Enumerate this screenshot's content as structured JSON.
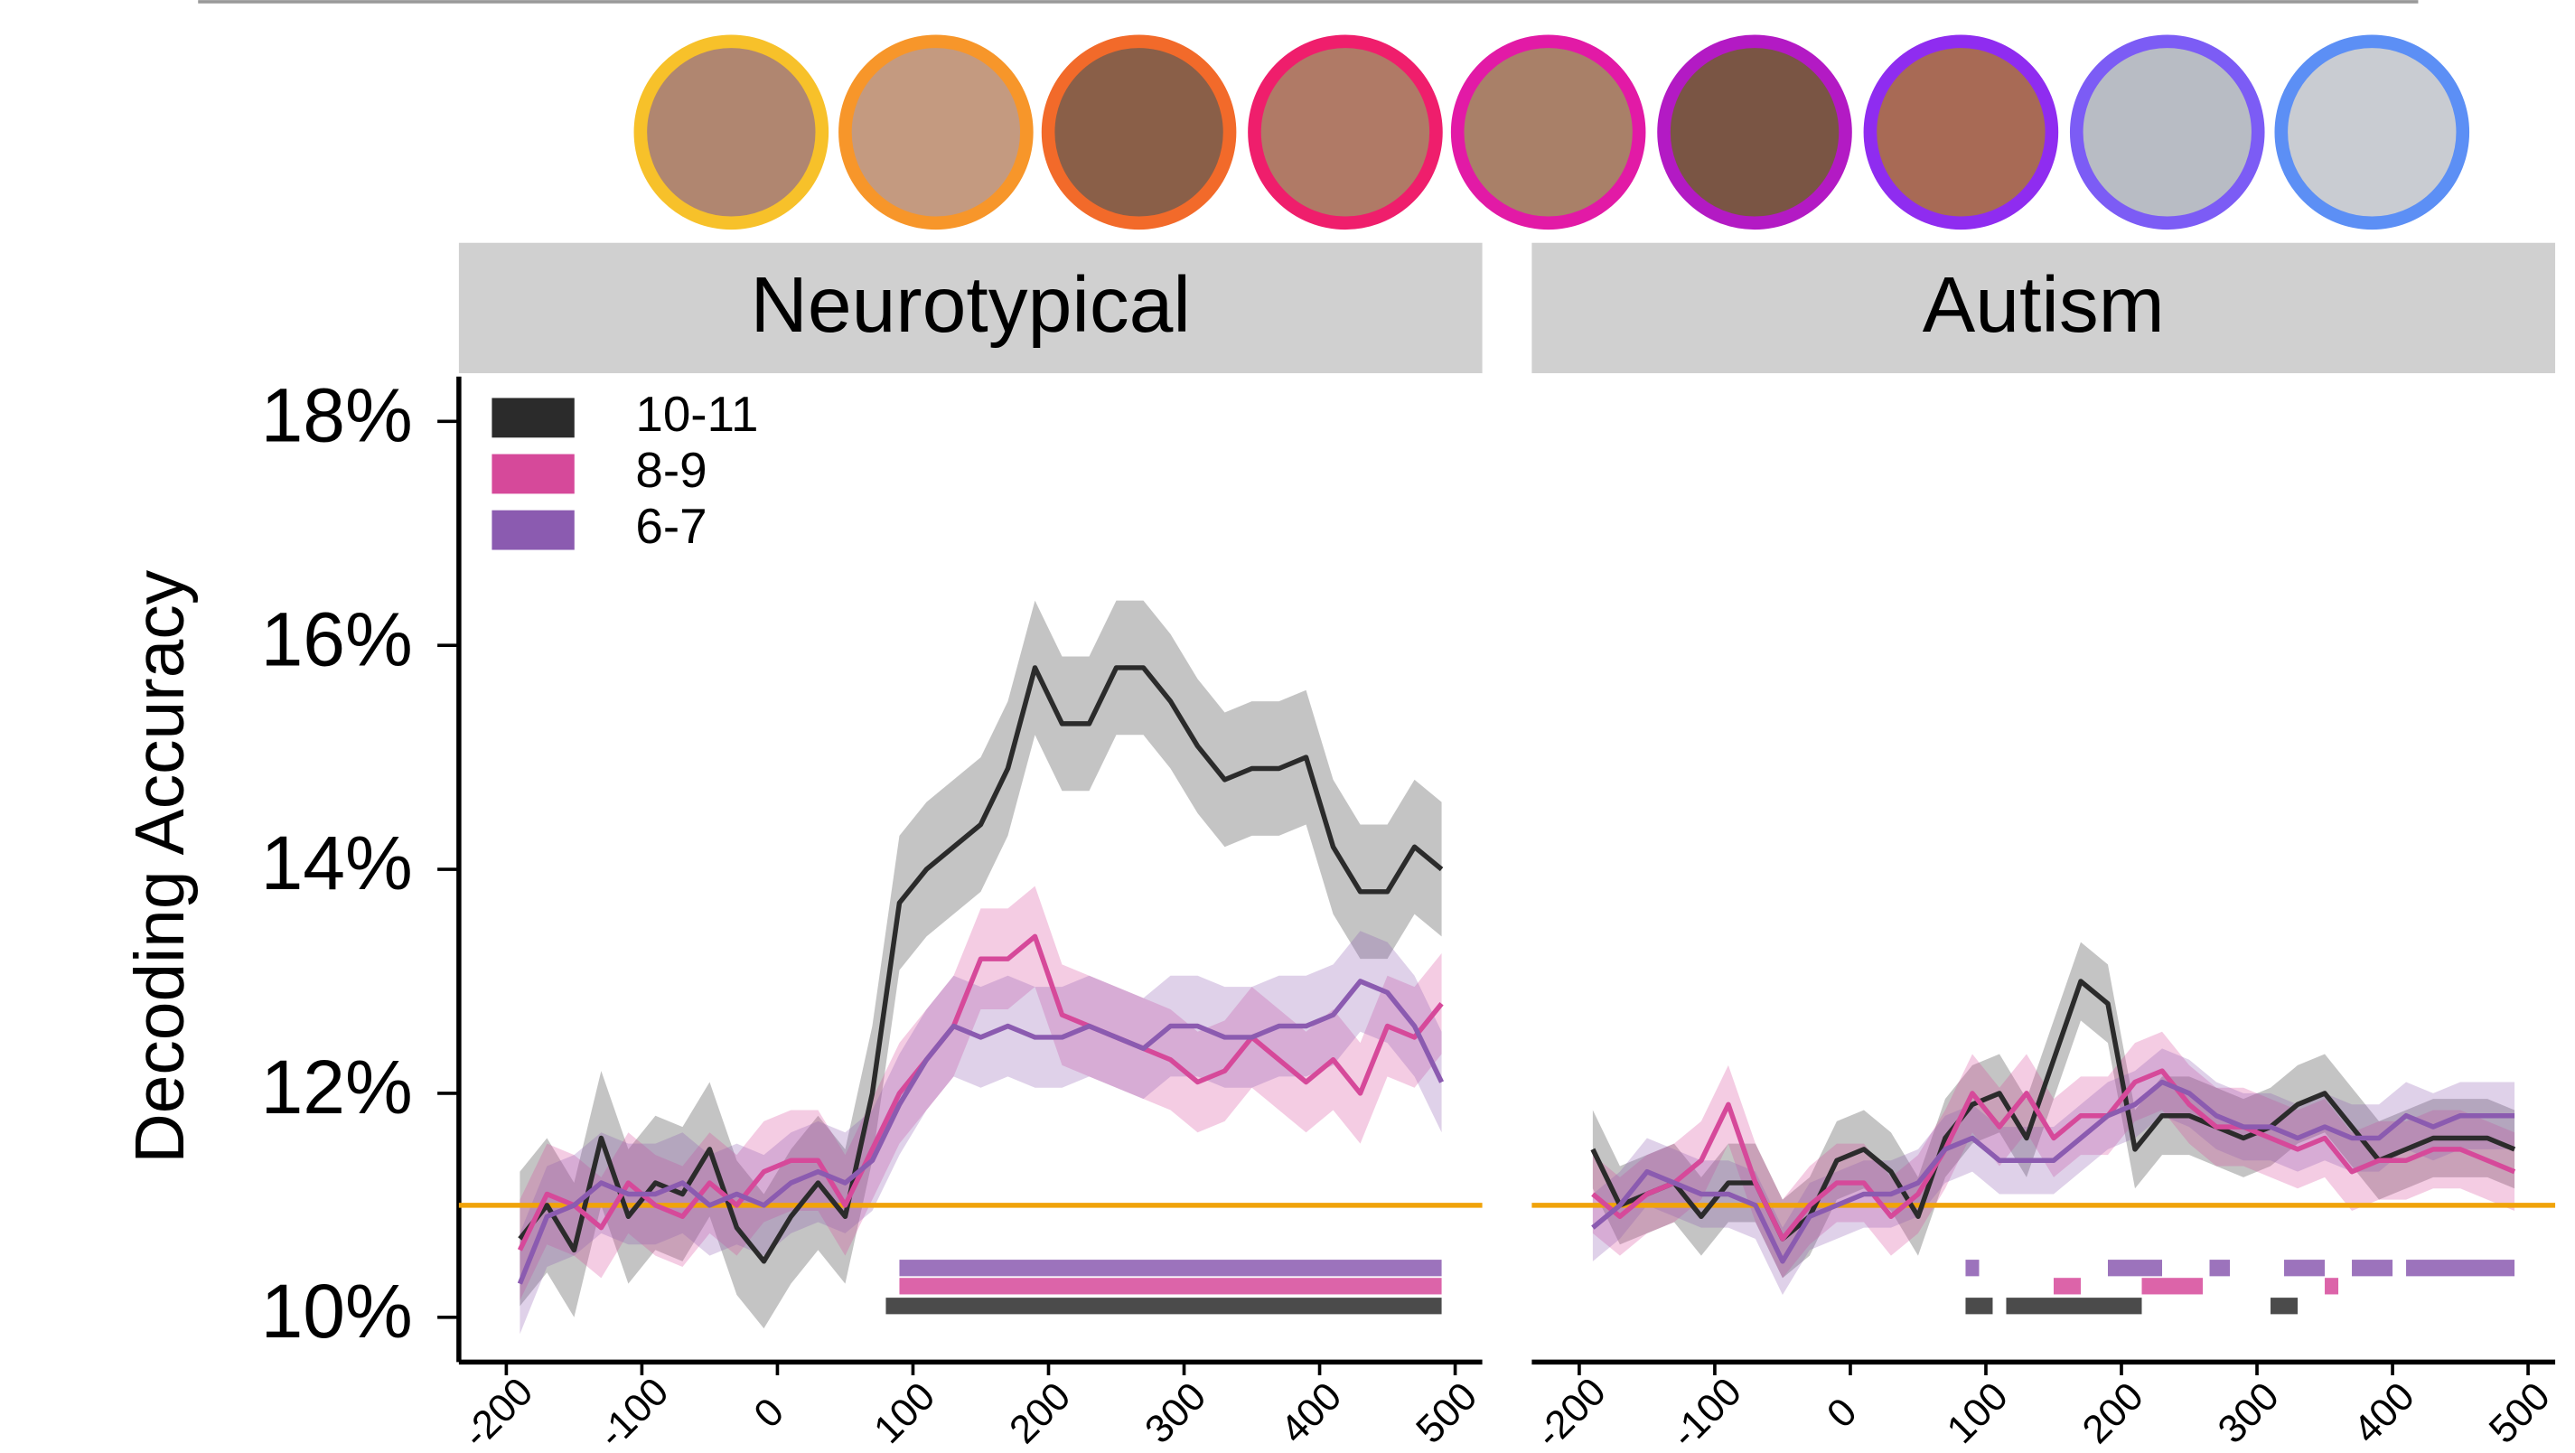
{
  "chart_data": [
    {
      "type": "line",
      "title": "Neurotypical",
      "ylabel": "Decoding Accuracy",
      "legend": "top-left",
      "xlim": [
        -235,
        520
      ],
      "xticks": [
        -200,
        -100,
        0,
        100,
        200,
        300,
        400,
        500
      ],
      "ylim": [
        9.6,
        18.4
      ],
      "yticks": [
        {
          "value": 10,
          "label": "10%"
        },
        {
          "value": 12,
          "label": "12%"
        },
        {
          "value": 14,
          "label": "14%"
        },
        {
          "value": 16,
          "label": "16%"
        },
        {
          "value": 18,
          "label": "18%"
        }
      ],
      "hline": 11,
      "hline_color": "#f0a30a",
      "x": [
        -190,
        -170,
        -150,
        -130,
        -110,
        -90,
        -70,
        -50,
        -30,
        -10,
        10,
        30,
        50,
        70,
        90,
        110,
        130,
        150,
        170,
        190,
        210,
        230,
        250,
        270,
        290,
        310,
        330,
        350,
        370,
        390,
        410,
        430,
        450,
        470,
        490
      ],
      "series": [
        {
          "name": "10-11",
          "color": "#2b2b2b",
          "error": 0.6,
          "significant": [
            [
              80,
              490
            ]
          ],
          "values": [
            10.7,
            11.0,
            10.6,
            11.6,
            10.9,
            11.2,
            11.1,
            11.5,
            10.8,
            10.5,
            10.9,
            11.2,
            10.9,
            12.0,
            13.7,
            14.0,
            14.2,
            14.4,
            14.9,
            15.8,
            15.3,
            15.3,
            15.8,
            15.8,
            15.5,
            15.1,
            14.8,
            14.9,
            14.9,
            15.0,
            14.2,
            13.8,
            13.8,
            14.2,
            14.0
          ]
        },
        {
          "name": "8-9",
          "color": "#d6499a",
          "error": 0.45,
          "significant": [
            [
              90,
              490
            ]
          ],
          "values": [
            10.6,
            11.1,
            11.0,
            10.8,
            11.2,
            11.0,
            10.9,
            11.2,
            11.0,
            11.3,
            11.4,
            11.4,
            11.0,
            11.5,
            12.0,
            12.3,
            12.6,
            13.2,
            13.2,
            13.4,
            12.7,
            12.6,
            12.5,
            12.4,
            12.3,
            12.1,
            12.2,
            12.5,
            12.3,
            12.1,
            12.3,
            12.0,
            12.6,
            12.5,
            12.8
          ]
        },
        {
          "name": "6-7",
          "color": "#8b5bb0",
          "error": 0.45,
          "significant": [
            [
              90,
              490
            ]
          ],
          "values": [
            10.3,
            10.9,
            11.0,
            11.2,
            11.1,
            11.1,
            11.2,
            11.0,
            11.1,
            11.0,
            11.2,
            11.3,
            11.2,
            11.4,
            11.9,
            12.3,
            12.6,
            12.5,
            12.6,
            12.5,
            12.5,
            12.6,
            12.5,
            12.4,
            12.6,
            12.6,
            12.5,
            12.5,
            12.6,
            12.6,
            12.7,
            13.0,
            12.9,
            12.6,
            12.1
          ]
        }
      ]
    },
    {
      "type": "line",
      "title": "Autism",
      "xlim": [
        -235,
        520
      ],
      "xticks": [
        -200,
        -100,
        0,
        100,
        200,
        300,
        400,
        500
      ],
      "ylim": [
        9.6,
        18.4
      ],
      "hline": 11,
      "hline_color": "#f0a30a",
      "x": [
        -190,
        -170,
        -150,
        -130,
        -110,
        -90,
        -70,
        -50,
        -30,
        -10,
        10,
        30,
        50,
        70,
        90,
        110,
        130,
        150,
        170,
        190,
        210,
        230,
        250,
        270,
        290,
        310,
        330,
        350,
        370,
        390,
        410,
        430,
        450,
        470,
        490
      ],
      "series": [
        {
          "color": "#2b2b2b",
          "error": 0.35,
          "significant": [
            [
              85,
              105
            ],
            [
              115,
              215
            ],
            [
              310,
              330
            ]
          ],
          "values": [
            11.5,
            11.0,
            11.1,
            11.2,
            10.9,
            11.2,
            11.2,
            10.7,
            10.9,
            11.4,
            11.5,
            11.3,
            10.9,
            11.6,
            11.9,
            12.0,
            11.6,
            12.3,
            13.0,
            12.8,
            11.5,
            11.8,
            11.8,
            11.7,
            11.6,
            11.7,
            11.9,
            12.0,
            11.7,
            11.4,
            11.5,
            11.6,
            11.6,
            11.6,
            11.5
          ]
        },
        {
          "color": "#d6499a",
          "error": 0.35,
          "significant": [
            [
              150,
              170
            ],
            [
              215,
              260
            ],
            [
              350,
              360
            ]
          ],
          "values": [
            11.1,
            10.9,
            11.1,
            11.2,
            11.4,
            11.9,
            11.2,
            10.7,
            11.0,
            11.2,
            11.2,
            10.9,
            11.1,
            11.5,
            12.0,
            11.7,
            12.0,
            11.6,
            11.8,
            11.8,
            12.1,
            12.2,
            11.9,
            11.7,
            11.7,
            11.6,
            11.5,
            11.6,
            11.3,
            11.4,
            11.4,
            11.5,
            11.5,
            11.4,
            11.3
          ]
        },
        {
          "color": "#8b5bb0",
          "error": 0.3,
          "significant": [
            [
              85,
              95
            ],
            [
              190,
              230
            ],
            [
              265,
              280
            ],
            [
              320,
              350
            ],
            [
              370,
              400
            ],
            [
              410,
              490
            ]
          ],
          "values": [
            10.8,
            11.0,
            11.3,
            11.2,
            11.1,
            11.1,
            11.0,
            10.5,
            10.9,
            11.0,
            11.1,
            11.1,
            11.2,
            11.5,
            11.6,
            11.4,
            11.4,
            11.4,
            11.6,
            11.8,
            11.9,
            12.1,
            12.0,
            11.8,
            11.7,
            11.7,
            11.6,
            11.7,
            11.6,
            11.6,
            11.8,
            11.7,
            11.8,
            11.8,
            11.8
          ]
        }
      ]
    }
  ]
}
